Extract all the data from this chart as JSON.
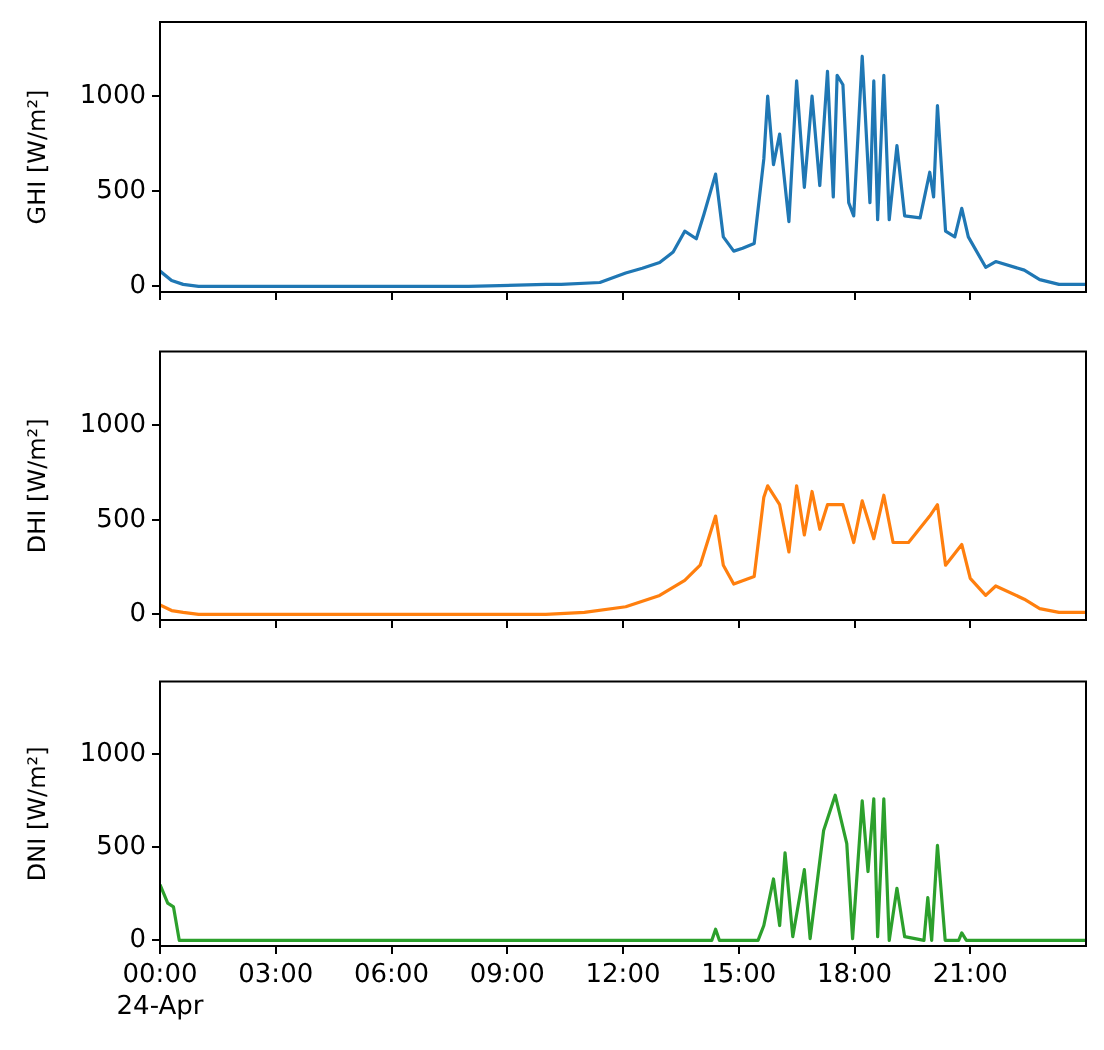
{
  "chart_data": [
    {
      "type": "line",
      "ylabel": "GHI [W/m²]",
      "tick_labels": "y",
      "xlim": [
        0,
        24
      ],
      "ylim": [
        -30,
        1390
      ],
      "yticks": [
        0,
        500,
        1000
      ],
      "xticks": [
        {
          "value": 0,
          "label": null
        },
        {
          "value": 3,
          "label": null
        },
        {
          "value": 6,
          "label": null
        },
        {
          "value": 9,
          "label": null
        },
        {
          "value": 12,
          "label": null
        },
        {
          "value": 15,
          "label": null
        },
        {
          "value": 18,
          "label": null
        },
        {
          "value": 21,
          "label": null
        }
      ],
      "series": [
        {
          "color": "#1f77b4",
          "x": [
            0,
            0.3,
            0.6,
            1,
            2,
            4,
            6,
            8,
            10,
            10.4,
            11.4,
            12.07,
            12.5,
            12.95,
            13.3,
            13.6,
            13.9,
            14.1,
            14.4,
            14.6,
            14.87,
            15.1,
            15.4,
            15.65,
            15.75,
            15.9,
            16.06,
            16.3,
            16.5,
            16.7,
            16.9,
            17.1,
            17.3,
            17.45,
            17.55,
            17.7,
            17.85,
            17.98,
            18.2,
            18.4,
            18.5,
            18.6,
            18.76,
            18.9,
            19.1,
            19.3,
            19.7,
            19.95,
            20.05,
            20.15,
            20.36,
            20.6,
            20.78,
            20.95,
            21.4,
            21.66,
            22.4,
            22.8,
            23.3,
            24
          ],
          "values": [
            80,
            30,
            10,
            0,
            0,
            0,
            0,
            0,
            10,
            10,
            20,
            70,
            95,
            125,
            180,
            290,
            250,
            380,
            590,
            260,
            185,
            200,
            225,
            670,
            1000,
            640,
            800,
            340,
            1080,
            520,
            1000,
            530,
            1130,
            470,
            1110,
            1060,
            440,
            370,
            1210,
            440,
            1080,
            350,
            1110,
            350,
            740,
            370,
            360,
            600,
            470,
            950,
            290,
            260,
            410,
            260,
            100,
            130,
            85,
            35,
            10,
            10
          ]
        }
      ]
    },
    {
      "type": "line",
      "ylabel": "DHI [W/m²]",
      "tick_labels": "y",
      "xlim": [
        0,
        24
      ],
      "ylim": [
        -30,
        1390
      ],
      "yticks": [
        0,
        500,
        1000
      ],
      "xticks": [
        {
          "value": 0,
          "label": null
        },
        {
          "value": 3,
          "label": null
        },
        {
          "value": 6,
          "label": null
        },
        {
          "value": 9,
          "label": null
        },
        {
          "value": 12,
          "label": null
        },
        {
          "value": 15,
          "label": null
        },
        {
          "value": 18,
          "label": null
        },
        {
          "value": 21,
          "label": null
        }
      ],
      "series": [
        {
          "color": "#ff7f0e",
          "x": [
            0,
            0.3,
            0.6,
            1,
            2,
            4,
            6,
            8,
            10,
            11,
            12.07,
            12.95,
            13.6,
            14.0,
            14.4,
            14.6,
            14.87,
            15.4,
            15.65,
            15.75,
            16.06,
            16.3,
            16.5,
            16.7,
            16.9,
            17.1,
            17.3,
            17.7,
            17.98,
            18.2,
            18.5,
            18.76,
            19.0,
            19.4,
            19.95,
            20.15,
            20.36,
            20.78,
            21.0,
            21.4,
            21.66,
            22.4,
            22.8,
            23.3,
            24
          ],
          "values": [
            50,
            20,
            10,
            0,
            0,
            0,
            0,
            0,
            0,
            10,
            40,
            100,
            180,
            260,
            520,
            260,
            160,
            200,
            620,
            680,
            580,
            330,
            680,
            420,
            650,
            450,
            580,
            580,
            380,
            600,
            400,
            630,
            380,
            380,
            520,
            580,
            260,
            370,
            190,
            100,
            150,
            80,
            30,
            10,
            10
          ]
        }
      ]
    },
    {
      "type": "line",
      "ylabel": "DNI [W/m²]",
      "xlim": [
        0,
        24
      ],
      "ylim": [
        -30,
        1390
      ],
      "yticks": [
        0,
        500,
        1000
      ],
      "xticks": [
        {
          "value": 0,
          "label": "00:00\n24-Apr"
        },
        {
          "value": 3,
          "label": "03:00"
        },
        {
          "value": 6,
          "label": "06:00"
        },
        {
          "value": 9,
          "label": "09:00"
        },
        {
          "value": 12,
          "label": "12:00"
        },
        {
          "value": 15,
          "label": "15:00"
        },
        {
          "value": 18,
          "label": "18:00"
        },
        {
          "value": 21,
          "label": "21:00"
        }
      ],
      "series": [
        {
          "color": "#2ca02c",
          "x": [
            0,
            0.2,
            0.35,
            0.5,
            2,
            6,
            10,
            14.3,
            14.4,
            14.5,
            15.5,
            15.65,
            15.9,
            16.06,
            16.2,
            16.4,
            16.7,
            16.85,
            17.2,
            17.5,
            17.8,
            17.95,
            18.2,
            18.35,
            18.5,
            18.6,
            18.76,
            18.9,
            19.1,
            19.3,
            19.8,
            19.9,
            20.0,
            20.15,
            20.35,
            20.7,
            20.78,
            20.9,
            24
          ],
          "values": [
            300,
            200,
            180,
            0,
            0,
            0,
            0,
            0,
            60,
            0,
            0,
            80,
            330,
            80,
            470,
            20,
            380,
            10,
            590,
            780,
            520,
            10,
            750,
            370,
            760,
            20,
            760,
            0,
            280,
            20,
            0,
            230,
            0,
            510,
            0,
            0,
            40,
            0,
            0
          ]
        }
      ]
    }
  ]
}
